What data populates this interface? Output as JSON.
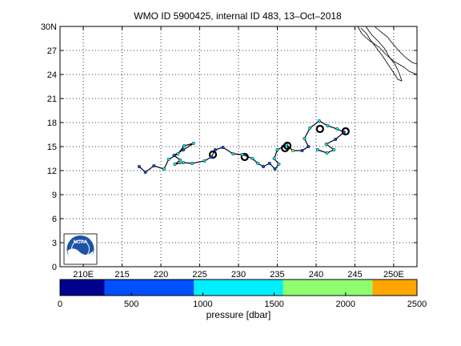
{
  "title": "WMO ID 5900425, internal ID 483, 13–Oct–2018",
  "map": {
    "lon_range": [
      207,
      253
    ],
    "lat_range": [
      0,
      30
    ],
    "lat_ticks": [
      "0",
      "3",
      "6",
      "9",
      "12",
      "15",
      "18",
      "21",
      "24",
      "27",
      "30N"
    ],
    "lon_ticks": [
      "210E",
      "215",
      "220",
      "225",
      "230",
      "235",
      "240",
      "245",
      "250E"
    ],
    "grid": true,
    "logo": "NOAA",
    "track_color": "#000000",
    "track": [
      [
        217.2,
        12.5
      ],
      [
        218.0,
        11.8
      ],
      [
        219.1,
        12.6
      ],
      [
        220.4,
        12.2
      ],
      [
        221.0,
        13.4
      ],
      [
        222.2,
        14.1
      ],
      [
        223.0,
        15.1
      ],
      [
        224.2,
        15.4
      ],
      [
        222.9,
        14.6
      ],
      [
        221.7,
        13.9
      ],
      [
        222.5,
        13.3
      ],
      [
        221.8,
        12.8
      ],
      [
        222.9,
        13.0
      ],
      [
        224.0,
        12.9
      ],
      [
        225.6,
        13.2
      ],
      [
        226.5,
        13.7
      ],
      [
        227.0,
        14.6
      ],
      [
        228.0,
        14.9
      ],
      [
        229.3,
        14.1
      ],
      [
        230.5,
        14.0
      ],
      [
        231.8,
        13.5
      ],
      [
        232.5,
        12.9
      ],
      [
        233.2,
        12.5
      ],
      [
        234.0,
        12.9
      ],
      [
        234.7,
        12.2
      ],
      [
        235.2,
        12.8
      ],
      [
        234.6,
        13.5
      ],
      [
        235.0,
        14.6
      ],
      [
        236.2,
        15.2
      ],
      [
        237.0,
        14.5
      ],
      [
        238.2,
        14.5
      ],
      [
        239.0,
        15.0
      ],
      [
        238.5,
        16.0
      ],
      [
        239.2,
        17.3
      ],
      [
        240.4,
        18.2
      ],
      [
        241.5,
        17.6
      ],
      [
        242.7,
        17.2
      ],
      [
        243.6,
        16.8
      ],
      [
        242.5,
        15.9
      ],
      [
        241.3,
        15.3
      ],
      [
        242.3,
        14.6
      ],
      [
        241.4,
        14.2
      ],
      [
        240.2,
        14.6
      ]
    ],
    "loops": [
      [
        236.0,
        14.8
      ],
      [
        236.3,
        15.1
      ],
      [
        240.5,
        17.2
      ],
      [
        243.8,
        16.9
      ],
      [
        226.7,
        14.0
      ],
      [
        230.8,
        13.7
      ]
    ]
  },
  "colorbar": {
    "label": "pressure [dbar]",
    "ticks": [
      "0",
      "500",
      "1000",
      "1500",
      "2000",
      "2500"
    ],
    "range": [
      0,
      2500
    ],
    "segments": [
      {
        "from": 0,
        "to": 313,
        "color": "#00008f"
      },
      {
        "from": 313,
        "to": 938,
        "color": "#0050ff"
      },
      {
        "from": 938,
        "to": 1563,
        "color": "#00efff"
      },
      {
        "from": 1563,
        "to": 2188,
        "color": "#8fff6f"
      },
      {
        "from": 2188,
        "to": 2500,
        "color": "#ffa700"
      }
    ]
  }
}
